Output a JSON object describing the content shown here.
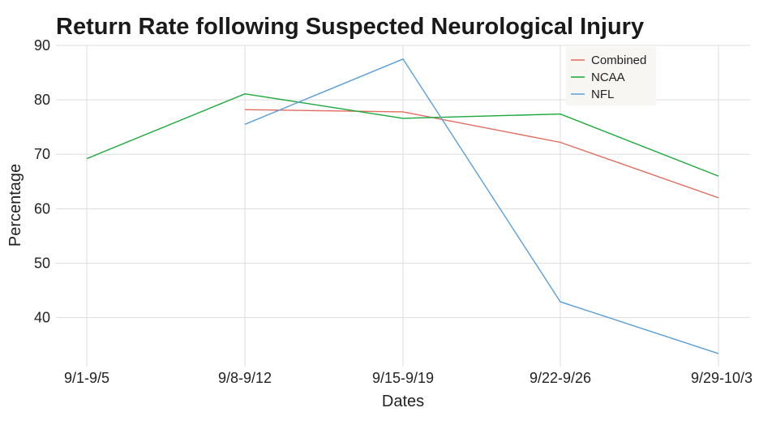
{
  "chart_data": {
    "type": "line",
    "title": "Return Rate following Suspected Neurological Injury",
    "xlabel": "Dates",
    "ylabel": "Percentage",
    "categories": [
      "9/1-9/5",
      "9/8-9/12",
      "9/15-9/19",
      "9/22-9/26",
      "9/29-10/3"
    ],
    "y_ticks": [
      40,
      50,
      60,
      70,
      80,
      90
    ],
    "ylim": [
      31,
      90
    ],
    "grid": true,
    "legend_position": "top-right",
    "series": [
      {
        "name": "Combined",
        "color": "#e06b5e",
        "values": [
          null,
          78.2,
          77.8,
          72.2,
          62.0
        ]
      },
      {
        "name": "NCAA",
        "color": "#1aa83a",
        "values": [
          69.2,
          81.1,
          76.6,
          77.4,
          66.0
        ]
      },
      {
        "name": "NFL",
        "color": "#5b9fd8",
        "values": [
          null,
          75.5,
          87.5,
          42.9,
          33.4
        ]
      }
    ]
  }
}
